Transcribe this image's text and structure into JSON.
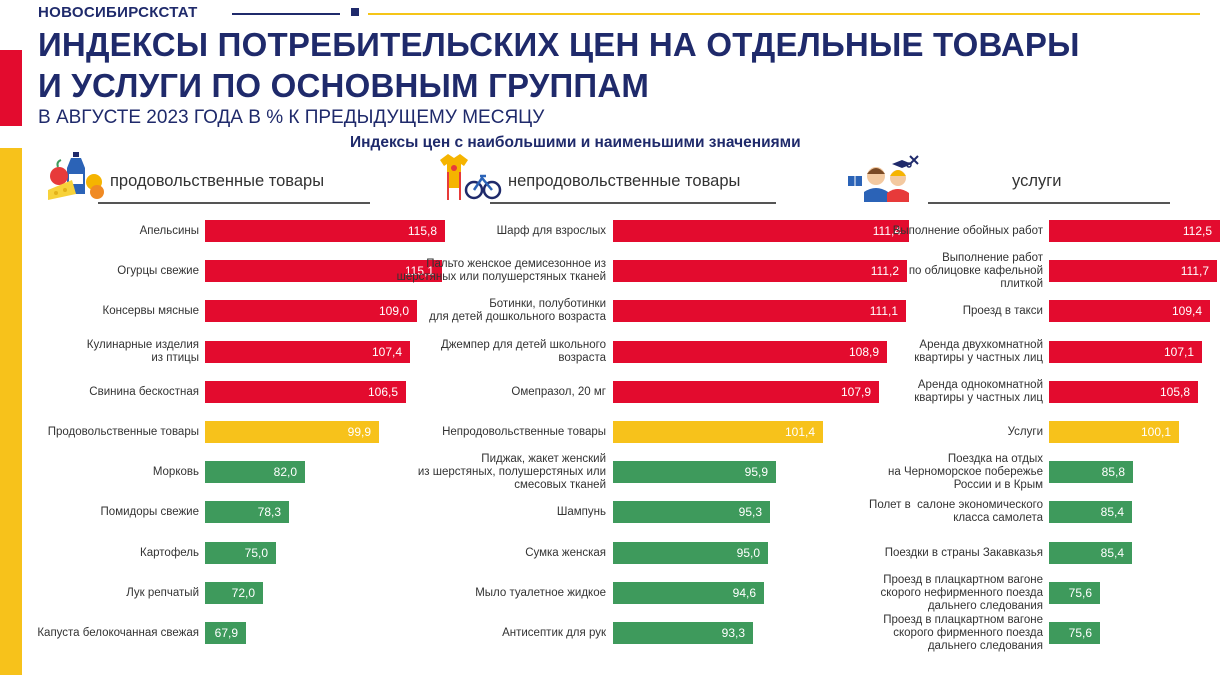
{
  "header": {
    "brand": "НОВОСИБИРСКСТАТ",
    "title_line1": "ИНДЕКСЫ ПОТРЕБИТЕЛЬСКИХ ЦЕН НА ОТДЕЛЬНЫЕ ТОВАРЫ",
    "title_line2": "И УСЛУГИ ПО ОСНОВНЫМ ГРУППАМ",
    "subtitle": "В АВГУСТЕ  2023 ГОДА В % К ПРЕДЫДУЩЕМУ  МЕСЯЦУ",
    "caption": "Индексы цен с наибольшими и наименьшими значениями"
  },
  "colors": {
    "high": "#e30b2e",
    "average": "#f7c21b",
    "low": "#3e9a5c"
  },
  "chart_data": [
    {
      "type": "bar",
      "title": "продовольственные товары",
      "icon": "food-icon",
      "categories": [
        "Апельсины",
        "Огурцы свежие",
        "Консервы мясные",
        "Кулинарные изделия\nиз птицы",
        "Свинина бескостная",
        "Продовольственные товары",
        "Морковь",
        "Помидоры свежие",
        "Картофель",
        "Лук репчатый",
        "Капуста белокочанная свежая"
      ],
      "values": [
        115.8,
        115.1,
        109.0,
        107.4,
        106.5,
        99.9,
        82.0,
        78.3,
        75.0,
        72.0,
        67.9
      ],
      "labels": [
        "115,8",
        "115,1",
        "109,0",
        "107,4",
        "106,5",
        "99,9",
        "82,0",
        "78,3",
        "75,0",
        "72,0",
        "67,9"
      ],
      "groups": [
        "high",
        "high",
        "high",
        "high",
        "high",
        "average",
        "low",
        "low",
        "low",
        "low",
        "low"
      ]
    },
    {
      "type": "bar",
      "title": "непродовольственные товары",
      "icon": "goods-icon",
      "categories": [
        "Шарф для взрослых",
        "Пальто женское демисезонное из\nшерстяных или полушерстяных тканей",
        "Ботинки, полуботинки\nдля детей дошкольного возраста",
        "Джемпер для детей школьного\nвозраста",
        "Омепразол, 20 мг",
        "Непродовольственные товары",
        "Пиджак, жакет женский\nиз шерстяных, полушерстяных или\nсмесовых тканей",
        "Шампунь",
        "Сумка женская",
        "Мыло туалетное жидкое",
        "Антисептик для рук"
      ],
      "values": [
        111.4,
        111.2,
        111.1,
        108.9,
        107.9,
        101.4,
        95.9,
        95.3,
        95.0,
        94.6,
        93.3
      ],
      "labels": [
        "111,4",
        "111,2",
        "111,1",
        "108,9",
        "107,9",
        "101,4",
        "95,9",
        "95,3",
        "95,0",
        "94,6",
        "93,3"
      ],
      "groups": [
        "high",
        "high",
        "high",
        "high",
        "high",
        "average",
        "low",
        "low",
        "low",
        "low",
        "low"
      ]
    },
    {
      "type": "bar",
      "title": "услуги",
      "icon": "services-icon",
      "categories": [
        "Выполнение обойных работ",
        "Выполнение работ\nпо облицовке кафельной\nплиткой",
        "Проезд в такси",
        "Аренда двухкомнатной\nквартиры у частных лиц",
        "Аренда однокомнатной\nквартиры у частных лиц",
        "Услуги",
        "Поездка на отдых\nна Черноморское побережье\nРоссии и в Крым",
        "Полет в  салоне экономического\nкласса самолета",
        "Поездки в страны Закавказья",
        "Проезд в плацкартном вагоне\nскорого нефирменного поезда\nдальнего следования",
        "Проезд в плацкартном вагоне\nскорого фирменного поезда\nдальнего следования"
      ],
      "values": [
        112.5,
        111.7,
        109.4,
        107.1,
        105.8,
        100.1,
        85.8,
        85.4,
        85.4,
        75.6,
        75.6
      ],
      "labels": [
        "112,5",
        "111,7",
        "109,4",
        "107,1",
        "105,8",
        "100,1",
        "85,8",
        "85,4",
        "85,4",
        "75,6",
        "75,6"
      ],
      "groups": [
        "high",
        "high",
        "high",
        "high",
        "high",
        "average",
        "low",
        "low",
        "low",
        "low",
        "low"
      ]
    }
  ]
}
